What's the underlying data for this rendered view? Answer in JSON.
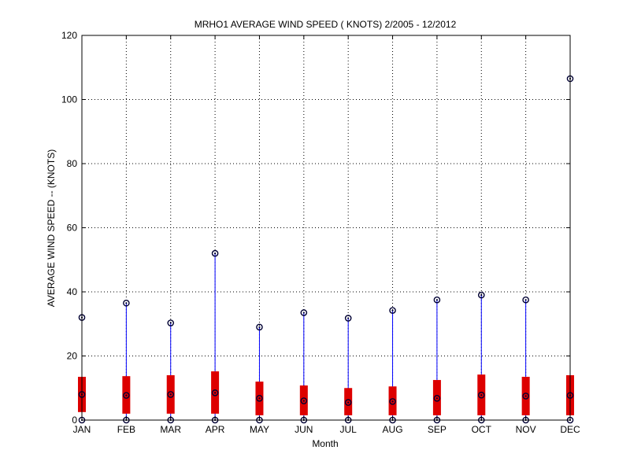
{
  "chart_data": {
    "type": "boxplot",
    "title": "MRHO1  AVERAGE WIND SPEED ( KNOTS) 2/2005 - 12/2012",
    "xlabel": "Month",
    "ylabel": "AVERAGE WIND SPEED -- (KNOTS)",
    "ylim": [
      0,
      120
    ],
    "yticks": [
      0,
      20,
      40,
      60,
      80,
      100,
      120
    ],
    "grid": true,
    "categories": [
      "JAN",
      "FEB",
      "MAR",
      "APR",
      "MAY",
      "JUN",
      "JUL",
      "AUG",
      "SEP",
      "OCT",
      "NOV",
      "DEC"
    ],
    "series": [
      {
        "min": [
          0,
          0,
          0,
          0,
          0,
          0,
          0,
          0,
          0,
          0,
          0,
          0
        ],
        "q1": [
          2.5,
          2,
          2,
          2,
          1.5,
          1.5,
          1.5,
          1.5,
          1.5,
          1.5,
          1.5,
          1.5
        ],
        "median": [
          8,
          7.7,
          8,
          8.5,
          6.8,
          6,
          5.5,
          5.8,
          6.8,
          7.8,
          7.5,
          7.7
        ],
        "q3": [
          13.5,
          13.7,
          14,
          15.2,
          12,
          10.8,
          10,
          10.5,
          12.5,
          14.2,
          13.5,
          14
        ],
        "max": [
          32,
          36.5,
          30.3,
          52,
          29,
          33.5,
          31.8,
          34.2,
          37.5,
          39,
          37.5,
          106.5
        ]
      }
    ],
    "colors": {
      "whisker": "#0000ff",
      "box": "#dd0000",
      "marker": "#000033",
      "grid": "#000000"
    }
  }
}
